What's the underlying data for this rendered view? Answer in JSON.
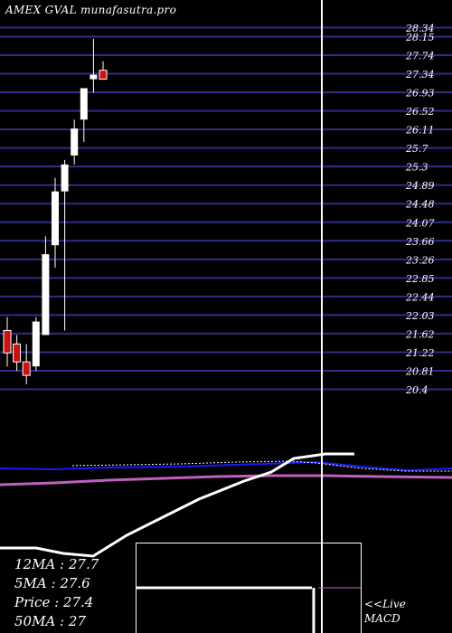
{
  "header": {
    "title": "AMEX  GVAL  munafasutra.pro"
  },
  "colors": {
    "background": "#000000",
    "grid": "#2e2e8a",
    "up_candle": "#ffffff",
    "down_candle": "#cc1111",
    "ma_blue": "#1a1aff",
    "ma_white": "#ffffff",
    "ma_magenta": "#c060c0",
    "cursor": "#ffffff",
    "text": "#ffffff"
  },
  "stats": {
    "ma12": "12MA : 27.7",
    "ma5": "5MA : 27.6",
    "price": "Price   : 27.4",
    "ma50": "50MA : 27"
  },
  "macd": {
    "label_line1": "<<Live",
    "label_line2": "MACD"
  },
  "chart_data": {
    "type": "candlestick",
    "title": "AMEX  GVAL  munafasutra.pro",
    "y_ticks": [
      "28.34",
      "28.15",
      "27.74",
      "27.34",
      "26.93",
      "26.52",
      "26.11",
      "25.7",
      "25.3",
      "24.89",
      "24.48",
      "24.07",
      "23.66",
      "23.26",
      "22.85",
      "22.44",
      "22.03",
      "21.62",
      "21.22",
      "20.81",
      "20.4"
    ],
    "ylim": [
      20.4,
      28.34
    ],
    "grid": true,
    "candles": [
      {
        "open": 21.7,
        "high": 22.0,
        "low": 20.9,
        "close": 21.2,
        "dir": "down"
      },
      {
        "open": 21.4,
        "high": 21.6,
        "low": 20.8,
        "close": 21.0,
        "dir": "down"
      },
      {
        "open": 21.0,
        "high": 21.4,
        "low": 20.5,
        "close": 20.7,
        "dir": "down"
      },
      {
        "open": 20.9,
        "high": 22.0,
        "low": 20.8,
        "close": 21.9,
        "dir": "up"
      },
      {
        "open": 21.6,
        "high": 23.8,
        "low": 21.6,
        "close": 23.4,
        "dir": "up"
      },
      {
        "open": 23.6,
        "high": 25.1,
        "low": 23.1,
        "close": 24.8,
        "dir": "up"
      },
      {
        "open": 24.8,
        "high": 25.5,
        "low": 21.7,
        "close": 25.4,
        "dir": "up"
      },
      {
        "open": 25.6,
        "high": 26.4,
        "low": 25.4,
        "close": 26.2,
        "dir": "up"
      },
      {
        "open": 26.4,
        "high": 27.1,
        "low": 25.9,
        "close": 27.1,
        "dir": "up"
      },
      {
        "open": 27.3,
        "high": 28.2,
        "low": 27.0,
        "close": 27.4,
        "dir": "up"
      },
      {
        "open": 27.5,
        "high": 27.7,
        "low": 27.3,
        "close": 27.3,
        "dir": "down"
      }
    ],
    "moving_averages": [
      {
        "name": "12MA",
        "value": 27.7
      },
      {
        "name": "5MA",
        "value": 27.6
      },
      {
        "name": "50MA",
        "value": 27
      }
    ],
    "price": 27.4
  }
}
